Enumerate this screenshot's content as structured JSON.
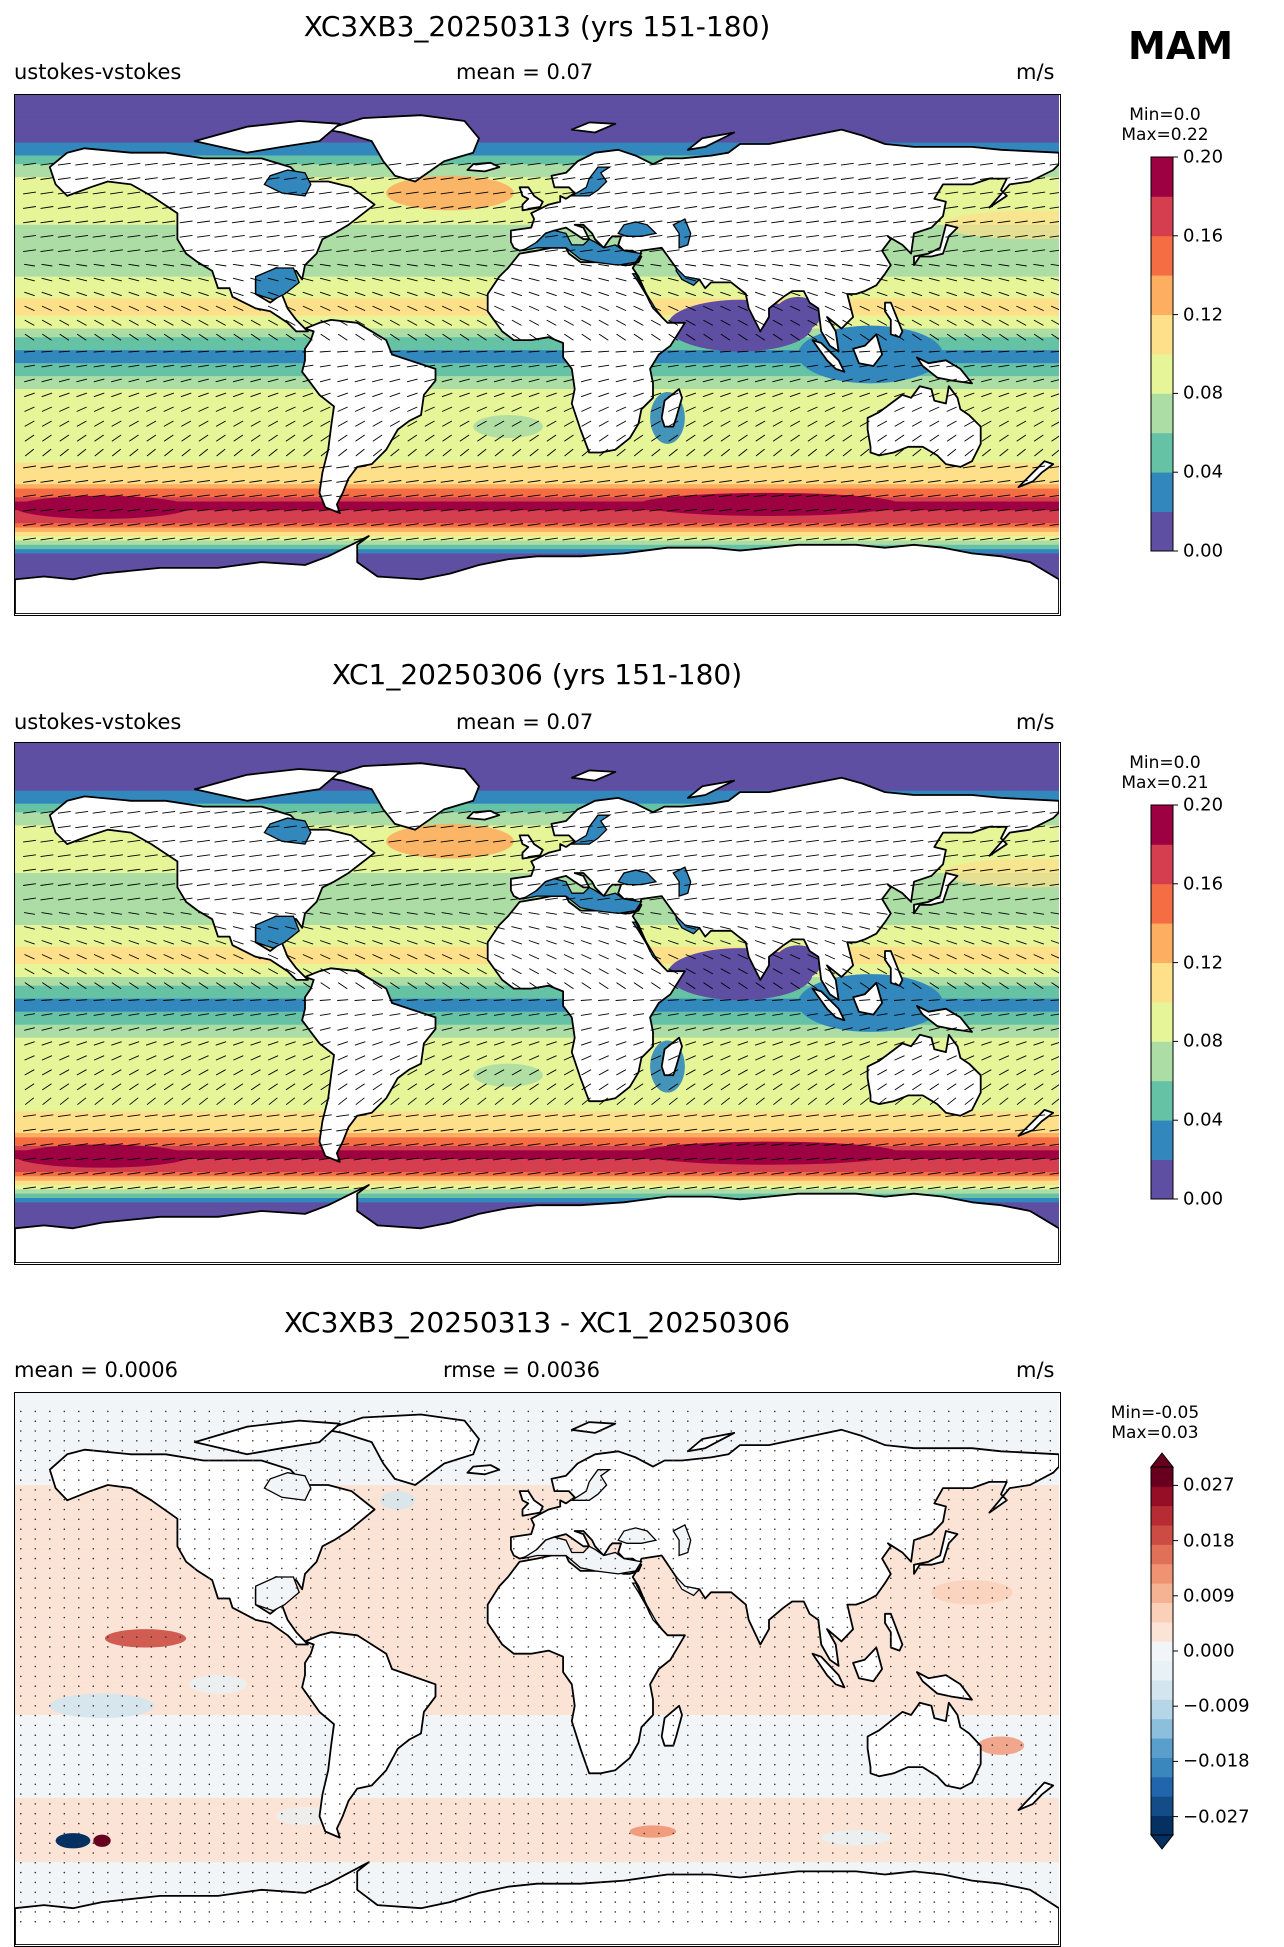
{
  "season": "MAM",
  "panels": [
    {
      "id": "top",
      "title": "XC3XB3_20250313 (yrs 151-180)",
      "left_label": "ustokes-vstokes",
      "center_label": "mean = 0.07",
      "right_label": "m/s",
      "min_label": "Min=0.0",
      "max_label": "Max=0.22",
      "colorbar": {
        "ticks": [
          "0.20",
          "0.16",
          "0.12",
          "0.08",
          "0.04",
          "0.00"
        ],
        "levels": [
          0.0,
          0.02,
          0.04,
          0.06,
          0.08,
          0.1,
          0.12,
          0.14,
          0.16,
          0.18,
          0.2
        ],
        "colors": [
          "#5e4fa2",
          "#3288bd",
          "#66c2a5",
          "#abdda4",
          "#e6f598",
          "#fee08b",
          "#fdae61",
          "#f46d43",
          "#d53e4f",
          "#9e0142"
        ]
      }
    },
    {
      "id": "middle",
      "title": "XC1_20250306 (yrs 151-180)",
      "left_label": "ustokes-vstokes",
      "center_label": "mean = 0.07",
      "right_label": "m/s",
      "min_label": "Min=0.0",
      "max_label": "Max=0.21",
      "colorbar": {
        "ticks": [
          "0.20",
          "0.16",
          "0.12",
          "0.08",
          "0.04",
          "0.00"
        ],
        "levels": [
          0.0,
          0.02,
          0.04,
          0.06,
          0.08,
          0.1,
          0.12,
          0.14,
          0.16,
          0.18,
          0.2
        ],
        "colors": [
          "#5e4fa2",
          "#3288bd",
          "#66c2a5",
          "#abdda4",
          "#e6f598",
          "#fee08b",
          "#fdae61",
          "#f46d43",
          "#d53e4f",
          "#9e0142"
        ]
      }
    },
    {
      "id": "bottom",
      "title": "XC3XB3_20250313 - XC1_20250306",
      "left_label": "mean = 0.0006",
      "center_label": "rmse = 0.0036",
      "right_label": "m/s",
      "min_label": "Min=-0.05",
      "max_label": "Max=0.03",
      "colorbar": {
        "ticks": [
          "0.027",
          "0.018",
          "0.009",
          "0.000",
          "−0.009",
          "−0.018",
          "−0.027"
        ],
        "levels": [
          -0.03,
          -0.027,
          -0.024,
          -0.021,
          -0.018,
          -0.015,
          -0.012,
          -0.009,
          -0.006,
          -0.003,
          0.003,
          0.006,
          0.009,
          0.012,
          0.015,
          0.018,
          0.021,
          0.024,
          0.027,
          0.03
        ],
        "colors": [
          "#053061",
          "#134c87",
          "#2166ac",
          "#3a87bd",
          "#5a9fcb",
          "#8bbfdc",
          "#b5d6e8",
          "#d3e6f0",
          "#e8f1f5",
          "#f2f5f7",
          "#fbe3d6",
          "#fbd0b9",
          "#f6b394",
          "#ef9373",
          "#e07058",
          "#cc4c43",
          "#b72b32",
          "#960d26",
          "#67001f"
        ]
      }
    }
  ],
  "chart_data": [
    {
      "type": "heatmap",
      "title": "XC3XB3_20250313 (yrs 151-180)",
      "variable": "ustokes-vstokes",
      "units": "m/s",
      "mean": 0.07,
      "min": 0.0,
      "max": 0.22,
      "colorbar_range": [
        0.0,
        0.2
      ],
      "colormap": "Spectral_r",
      "zonal_profile": {
        "lat": [
          90,
          75,
          60,
          45,
          30,
          15,
          0,
          -15,
          -30,
          -45,
          -52,
          -60,
          -70,
          -90
        ],
        "value": [
          0.0,
          0.01,
          0.09,
          0.08,
          0.07,
          0.11,
          0.03,
          0.09,
          0.08,
          0.12,
          0.19,
          0.15,
          0.0,
          0.0
        ]
      }
    },
    {
      "type": "heatmap",
      "title": "XC1_20250306 (yrs 151-180)",
      "variable": "ustokes-vstokes",
      "units": "m/s",
      "mean": 0.07,
      "min": 0.0,
      "max": 0.21,
      "colorbar_range": [
        0.0,
        0.2
      ],
      "colormap": "Spectral_r",
      "zonal_profile": {
        "lat": [
          90,
          75,
          60,
          45,
          30,
          15,
          0,
          -15,
          -30,
          -45,
          -52,
          -60,
          -70,
          -90
        ],
        "value": [
          0.0,
          0.01,
          0.09,
          0.08,
          0.07,
          0.11,
          0.03,
          0.09,
          0.08,
          0.12,
          0.19,
          0.15,
          0.0,
          0.0
        ]
      }
    },
    {
      "type": "heatmap",
      "title": "XC3XB3_20250313 - XC1_20250306",
      "units": "m/s",
      "mean": 0.0006,
      "rmse": 0.0036,
      "min": -0.05,
      "max": 0.03,
      "colorbar_range": [
        -0.03,
        0.03
      ],
      "colormap": "RdBu_r",
      "zonal_profile": {
        "lat": [
          90,
          60,
          30,
          15,
          0,
          -15,
          -30,
          -45,
          -55,
          -60,
          -70,
          -90
        ],
        "value": [
          0.0,
          0.003,
          0.004,
          0.004,
          0.003,
          0.003,
          -0.002,
          0.004,
          0.005,
          0.004,
          0.0,
          0.0
        ]
      }
    }
  ]
}
